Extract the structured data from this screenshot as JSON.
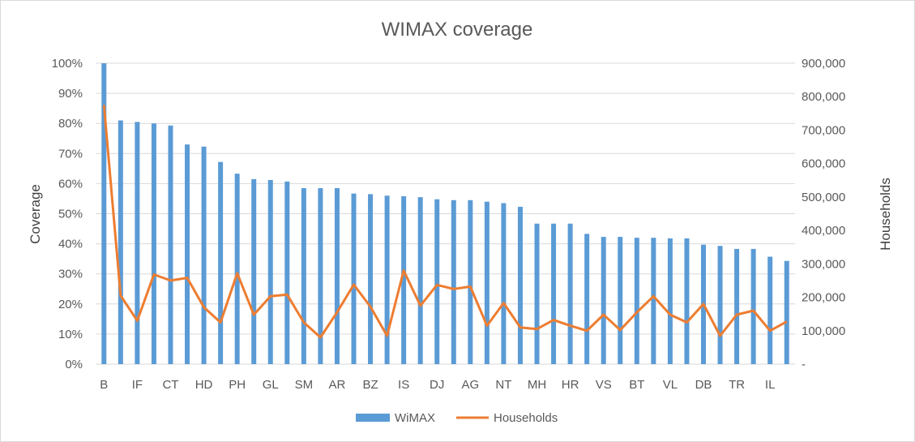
{
  "chart_data": {
    "type": "bar",
    "title": "WIMAX coverage",
    "ylabel": "Coverage",
    "y2label": "Households",
    "ylim": [
      0,
      1
    ],
    "y2lim": [
      0,
      900000
    ],
    "yticks": [
      "0%",
      "10%",
      "20%",
      "30%",
      "40%",
      "50%",
      "60%",
      "70%",
      "80%",
      "90%",
      "100%"
    ],
    "y2ticks": [
      "-",
      "100,000",
      "200,000",
      "300,000",
      "400,000",
      "500,000",
      "600,000",
      "700,000",
      "800,000",
      "900,000"
    ],
    "grid": true,
    "legend_position": "bottom",
    "categories": [
      "B",
      "",
      "IF",
      "",
      "CT",
      "",
      "HD",
      "",
      "PH",
      "",
      "GL",
      "",
      "SM",
      "",
      "AR",
      "",
      "BZ",
      "",
      "IS",
      "",
      "DJ",
      "",
      "AG",
      "",
      "NT",
      "",
      "MH",
      "",
      "HR",
      "",
      "VS",
      "",
      "BT",
      "",
      "VL",
      "",
      "DB",
      "",
      "TR",
      "",
      "IL",
      ""
    ],
    "series": [
      {
        "name": "WiMAX",
        "kind": "bar",
        "axis": "left",
        "color": "#5b9bd5",
        "values": [
          1.0,
          0.81,
          0.805,
          0.8,
          0.793,
          0.73,
          0.723,
          0.672,
          0.633,
          0.615,
          0.612,
          0.607,
          0.585,
          0.585,
          0.585,
          0.567,
          0.565,
          0.56,
          0.558,
          0.555,
          0.548,
          0.545,
          0.545,
          0.54,
          0.535,
          0.523,
          0.467,
          0.467,
          0.467,
          0.433,
          0.423,
          0.423,
          0.42,
          0.42,
          0.418,
          0.418,
          0.397,
          0.393,
          0.383,
          0.383,
          0.357,
          0.343
        ]
      },
      {
        "name": "Households",
        "kind": "line",
        "axis": "right",
        "color": "#ed7d31",
        "values": [
          775000,
          205000,
          130000,
          268000,
          250000,
          258000,
          170000,
          125000,
          272000,
          148000,
          203000,
          208000,
          125000,
          80000,
          155000,
          238000,
          172000,
          85000,
          280000,
          175000,
          237000,
          225000,
          232000,
          115000,
          183000,
          110000,
          105000,
          132000,
          115000,
          100000,
          148000,
          102000,
          155000,
          203000,
          148000,
          125000,
          180000,
          85000,
          148000,
          160000,
          100000,
          127000
        ]
      }
    ]
  }
}
